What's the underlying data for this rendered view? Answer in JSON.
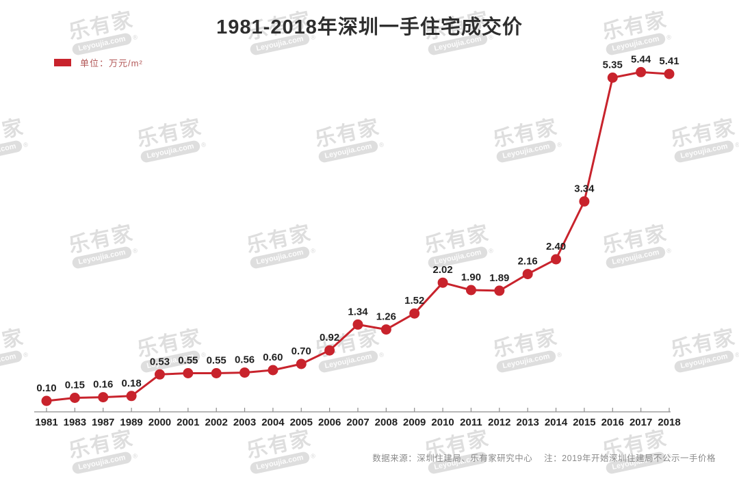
{
  "header": {
    "title": "1981-2018年深圳一手住宅成交价"
  },
  "legend": {
    "label": "单位：万元/m²",
    "swatch_color": "#c8232c"
  },
  "watermark": {
    "brand": "乐有家",
    "domain": "Leyoujia.com",
    "reg": "®"
  },
  "footer": {
    "note": "数据来源：深圳住建局、乐有家研究中心　 注：2019年开始深圳住建局不公示一手价格"
  },
  "chart_data": {
    "type": "line",
    "title": "1981-2018年深圳一手住宅成交价",
    "legend_entries": [
      "单位：万元/m²"
    ],
    "categories": [
      "1981",
      "1983",
      "1987",
      "1989",
      "2000",
      "2001",
      "2002",
      "2003",
      "2004",
      "2005",
      "2006",
      "2007",
      "2008",
      "2009",
      "2010",
      "2011",
      "2012",
      "2013",
      "2014",
      "2015",
      "2016",
      "2017",
      "2018"
    ],
    "values": [
      0.1,
      0.15,
      0.16,
      0.18,
      0.53,
      0.55,
      0.55,
      0.56,
      0.6,
      0.7,
      0.92,
      1.34,
      1.26,
      1.52,
      2.02,
      1.9,
      1.89,
      2.16,
      2.4,
      3.34,
      5.35,
      5.44,
      5.41
    ],
    "series_color": "#c8232c",
    "marker": "circle",
    "value_labels": true,
    "value_label_format": "0.00",
    "xlabel": "",
    "ylabel": "万元/m²",
    "ylim": [
      0,
      6
    ],
    "grid": false,
    "y_axis_visible": false,
    "legend_position": "top-left",
    "axis_color": "#8c8c8c",
    "label_color": "#1f1f1f"
  }
}
